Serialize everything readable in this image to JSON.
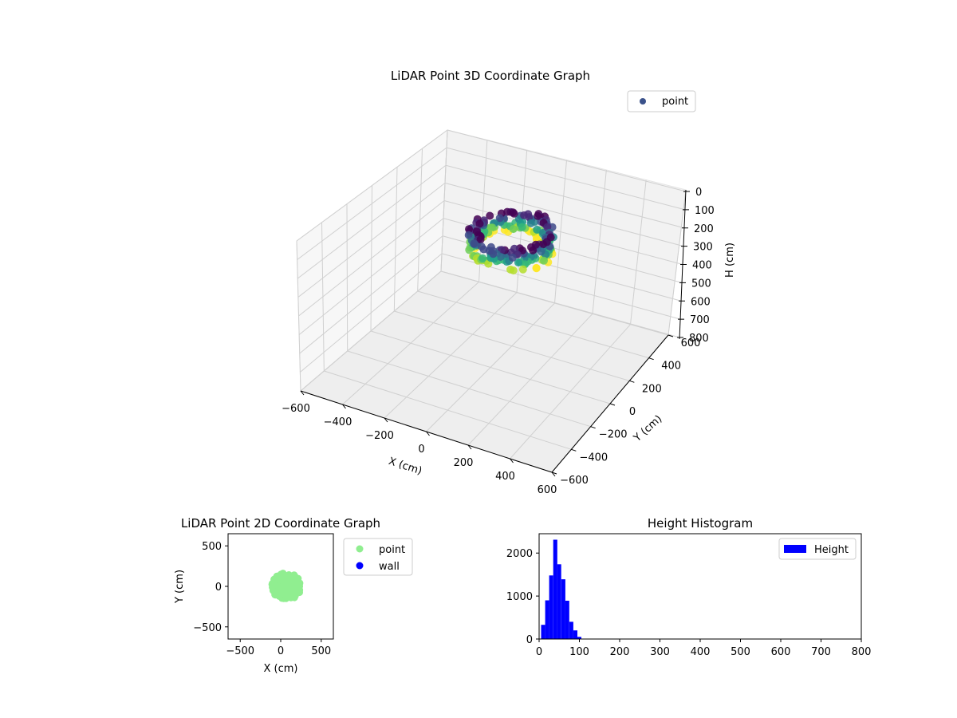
{
  "chart_data": [
    {
      "id": "3d",
      "type": "scatter",
      "title": "LiDAR Point 3D Coordinate Graph",
      "xlabel": "X (cm)",
      "ylabel": "Y (cm)",
      "zlabel": "H (cm)",
      "xlim": [
        -600,
        600
      ],
      "ylim": [
        -600,
        600
      ],
      "zlim": [
        0,
        800
      ],
      "z_inverted": true,
      "xticks": [
        "−600",
        "−400",
        "−200",
        "0",
        "200",
        "400",
        "600"
      ],
      "yticks": [
        "−600",
        "−400",
        "−200",
        "0",
        "200",
        "400",
        "600"
      ],
      "zticks": [
        "0",
        "100",
        "200",
        "300",
        "400",
        "500",
        "600",
        "700",
        "800"
      ],
      "legend": [
        {
          "label": "point",
          "color": "#3b528b"
        }
      ],
      "legend_position": "top-right",
      "colormap": "viridis",
      "grid": true,
      "series": [
        {
          "name": "point",
          "ring": {
            "center_x": 60,
            "center_y": 0,
            "radius_x": 170,
            "radius_y": 170,
            "height_range": [
              20,
              140
            ]
          }
        }
      ]
    },
    {
      "id": "2d",
      "type": "scatter",
      "title": "LiDAR Point 2D Coordinate Graph",
      "xlabel": "X (cm)",
      "ylabel": "Y (cm)",
      "xlim": [
        -650,
        650
      ],
      "ylim": [
        -650,
        650
      ],
      "xticks": [
        "−500",
        "0",
        "500"
      ],
      "yticks": [
        "−500",
        "0",
        "500"
      ],
      "legend": [
        {
          "label": "point",
          "color": "#90ee90"
        },
        {
          "label": "wall",
          "color": "#0000ff"
        }
      ],
      "legend_position": "outside right",
      "series": [
        {
          "name": "point",
          "color": "#90ee90",
          "region": {
            "center_x": 70,
            "center_y": 0,
            "radius_x": 180,
            "radius_y": 170
          }
        },
        {
          "name": "wall",
          "color": "#0000ff",
          "points": []
        }
      ]
    },
    {
      "id": "hist",
      "type": "bar",
      "title": "Height Histogram",
      "xlim": [
        0,
        800
      ],
      "ylim": [
        0,
        2450
      ],
      "xticks": [
        "0",
        "100",
        "200",
        "300",
        "400",
        "500",
        "600",
        "700",
        "800"
      ],
      "yticks": [
        "0",
        "1000",
        "2000"
      ],
      "legend": [
        {
          "label": "Height",
          "color": "#0000ff"
        }
      ],
      "legend_position": "top-right",
      "bin_width": 10,
      "bins": [
        {
          "x": 10,
          "v": 330
        },
        {
          "x": 20,
          "v": 900
        },
        {
          "x": 30,
          "v": 1480
        },
        {
          "x": 40,
          "v": 2310
        },
        {
          "x": 50,
          "v": 1740
        },
        {
          "x": 60,
          "v": 1390
        },
        {
          "x": 70,
          "v": 890
        },
        {
          "x": 80,
          "v": 400
        },
        {
          "x": 90,
          "v": 200
        },
        {
          "x": 100,
          "v": 50
        }
      ]
    }
  ]
}
